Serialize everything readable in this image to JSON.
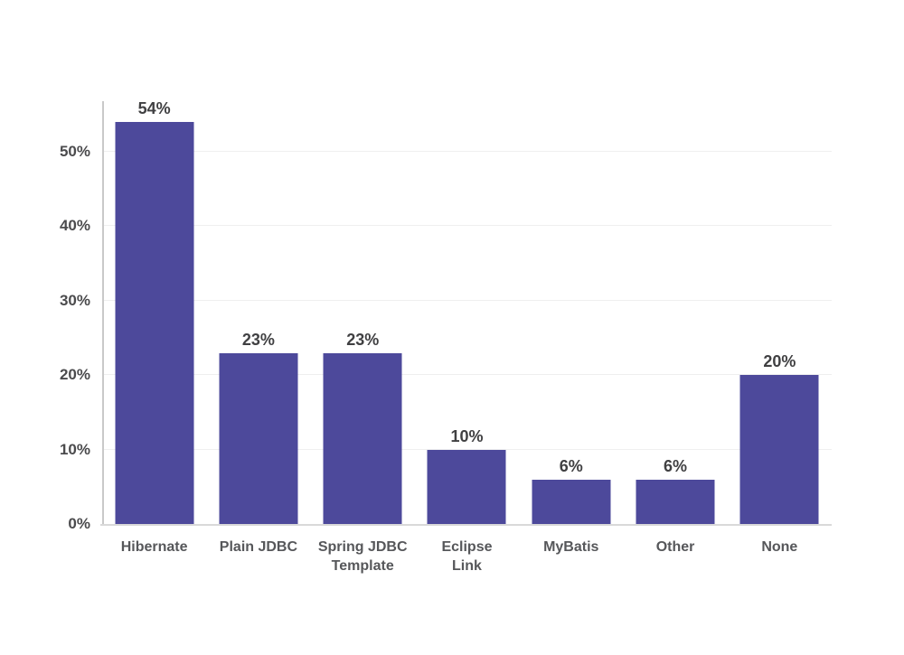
{
  "page": {
    "background_color": "#ffffff",
    "title": ""
  },
  "chart_data": {
    "type": "bar",
    "title": "",
    "xlabel": "",
    "ylabel": "",
    "categories": [
      "Hibernate",
      "Plain JDBC",
      "Spring JDBC\nTemplate",
      "Eclipse\nLink",
      "MyBatis",
      "Other",
      "None"
    ],
    "values": [
      54,
      23,
      23,
      10,
      6,
      6,
      20
    ],
    "value_labels": [
      "54%",
      "23%",
      "23%",
      "10%",
      "6%",
      "6%",
      "20%"
    ],
    "y_ticks": [
      {
        "value": 0,
        "label": "0%"
      },
      {
        "value": 10,
        "label": "10%"
      },
      {
        "value": 20,
        "label": "20%"
      },
      {
        "value": 30,
        "label": "30%"
      },
      {
        "value": 40,
        "label": "40%"
      },
      {
        "value": 50,
        "label": "50%"
      }
    ],
    "ylim": [
      0,
      56.8
    ],
    "grid": true,
    "legend_position": "none",
    "colors": {
      "bar": "#4D499B",
      "grid_line": "#efefef",
      "x_axis_line": "#d9d9d9",
      "y_axis_line": "#c9c9c9",
      "value_label": "#404042",
      "tick_label": "#4b4b4d",
      "category_label": "#56575a"
    }
  }
}
